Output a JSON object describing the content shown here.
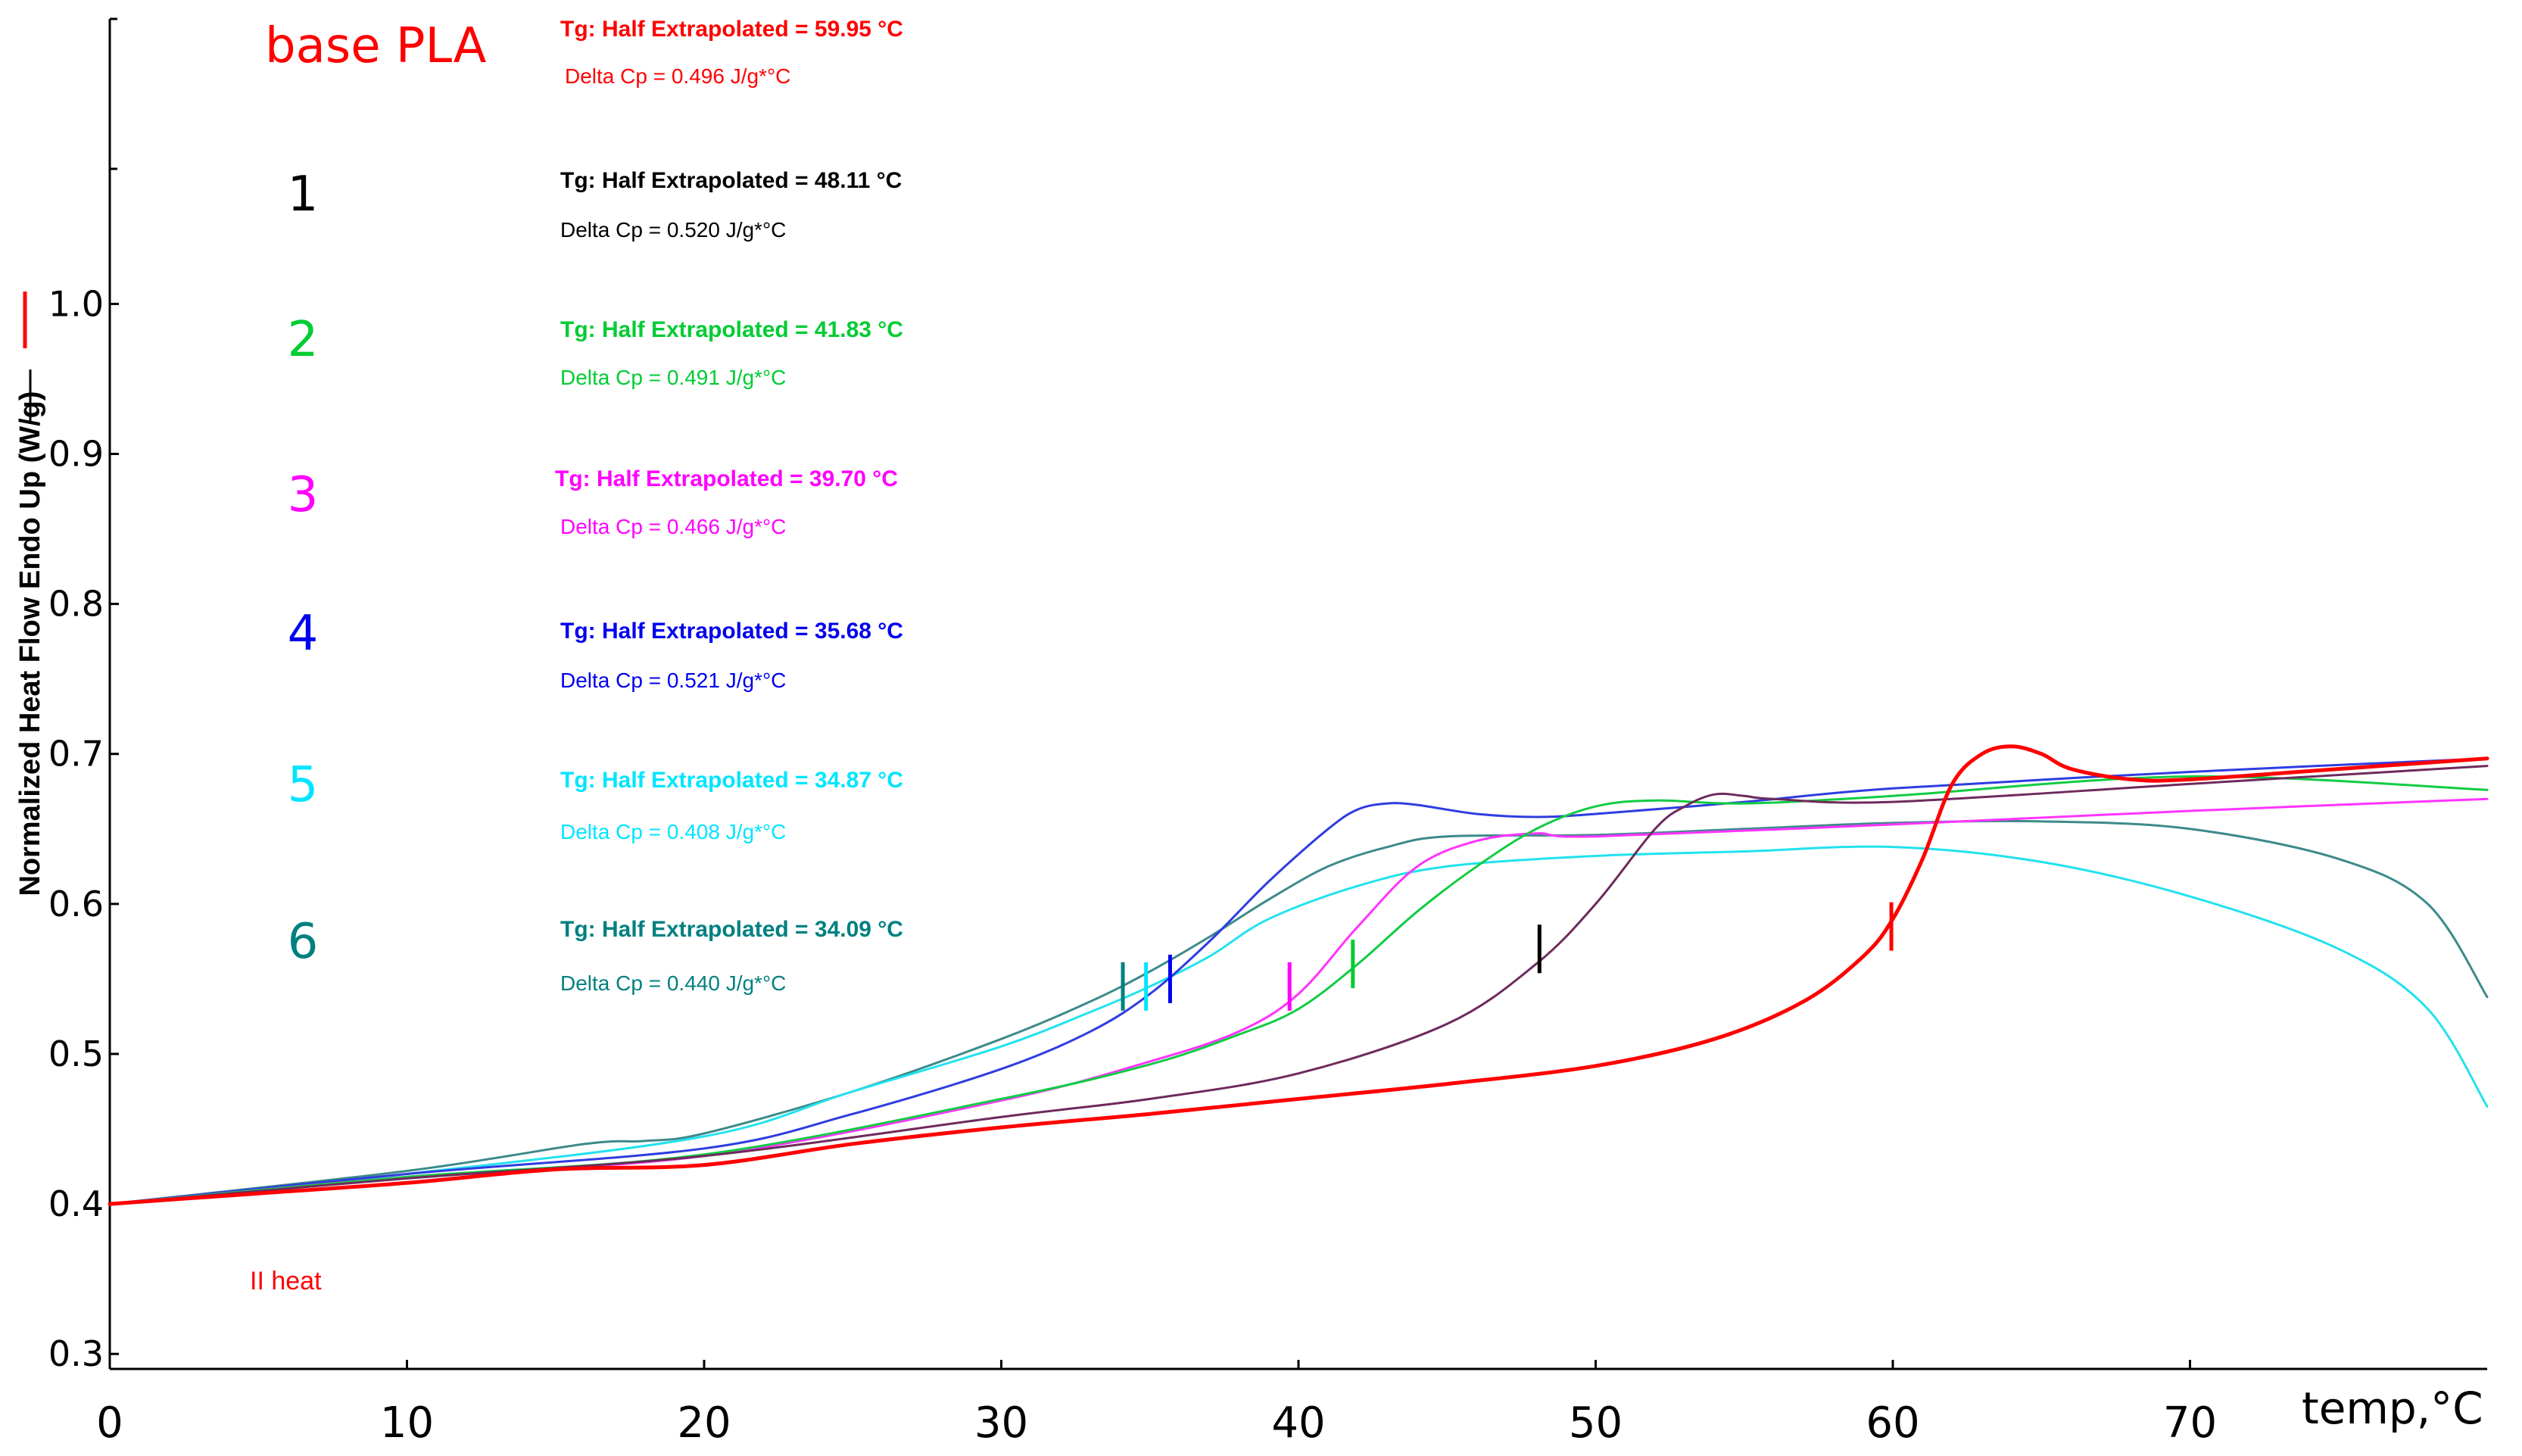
{
  "chart_data": {
    "type": "line",
    "title": "base PLA",
    "xlabel": "temp,°C",
    "ylabel": "Normalized Heat Flow Endo Up (W/g)",
    "xlim": [
      0,
      80
    ],
    "ylim": [
      0.29,
      1.19
    ],
    "x_ticks": [
      0,
      10,
      20,
      30,
      40,
      50,
      60,
      70
    ],
    "x_tick_labels": [
      "0",
      "10",
      "20",
      "30",
      "40",
      "50",
      "60",
      "70"
    ],
    "y_ticks": [
      0.3,
      0.4,
      0.5,
      0.6,
      0.7,
      0.8,
      0.9,
      1.0
    ],
    "y_tick_labels": [
      "0.3",
      "0.4",
      "0.5",
      "0.6",
      "0.7",
      "0.8",
      "0.9",
      "1.0"
    ],
    "note": "II heat",
    "series": [
      {
        "name": "base PLA",
        "label": "base PLA",
        "color": "#ff0000",
        "tg_text": "Tg: Half Extrapolated = 59.95 °C",
        "cp_text": "Delta Cp = 0.496 J/g*°C",
        "tg": 59.95,
        "tg_y": 0.585,
        "x": [
          0,
          5,
          10,
          15,
          20,
          25,
          30,
          35,
          40,
          45,
          50,
          54,
          57,
          59,
          60,
          61,
          62,
          63,
          64,
          65,
          66,
          68,
          70,
          75,
          80
        ],
        "y": [
          0.4,
          0.407,
          0.414,
          0.423,
          0.426,
          0.44,
          0.451,
          0.46,
          0.47,
          0.48,
          0.492,
          0.51,
          0.535,
          0.565,
          0.59,
          0.63,
          0.68,
          0.7,
          0.705,
          0.7,
          0.69,
          0.683,
          0.683,
          0.69,
          0.697
        ]
      },
      {
        "name": "1",
        "label": "1",
        "color": "#000000",
        "curve_color": "#6e2a5c",
        "tg_text": "Tg: Half Extrapolated = 48.11 °C",
        "cp_text": "Delta Cp = 0.520 J/g*°C",
        "tg": 48.11,
        "tg_y": 0.57,
        "x": [
          0,
          10,
          20,
          30,
          35,
          40,
          45,
          48,
          50,
          52,
          53,
          54,
          55,
          56,
          60,
          70,
          80
        ],
        "y": [
          0.4,
          0.417,
          0.432,
          0.458,
          0.47,
          0.487,
          0.52,
          0.56,
          0.6,
          0.65,
          0.665,
          0.673,
          0.672,
          0.67,
          0.668,
          0.68,
          0.692
        ]
      },
      {
        "name": "2",
        "label": "2",
        "color": "#00cc33",
        "curve_color": "#11cc44",
        "tg_text": "Tg: Half Extrapolated = 41.83 °C",
        "cp_text": "Delta Cp = 0.491 J/g*°C",
        "tg": 41.83,
        "tg_y": 0.56,
        "x": [
          0,
          10,
          20,
          30,
          35,
          38,
          40,
          42,
          44,
          46,
          48,
          50,
          52,
          55,
          60,
          70,
          80
        ],
        "y": [
          0.4,
          0.418,
          0.433,
          0.47,
          0.493,
          0.513,
          0.53,
          0.56,
          0.595,
          0.625,
          0.65,
          0.665,
          0.669,
          0.667,
          0.672,
          0.685,
          0.676
        ]
      },
      {
        "name": "3",
        "label": "3",
        "color": "#ff00ff",
        "curve_color": "#ff33ff",
        "tg_text": "Tg: Half Extrapolated = 39.70 °C",
        "cp_text": "Delta Cp = 0.466 J/g*°C",
        "tg": 39.7,
        "tg_y": 0.545,
        "x": [
          0,
          10,
          20,
          30,
          35,
          38,
          40,
          42,
          44,
          46,
          48,
          50,
          60,
          70,
          80
        ],
        "y": [
          0.4,
          0.418,
          0.432,
          0.469,
          0.495,
          0.515,
          0.54,
          0.585,
          0.625,
          0.642,
          0.647,
          0.645,
          0.653,
          0.662,
          0.67
        ]
      },
      {
        "name": "4",
        "label": "4",
        "color": "#0000ee",
        "curve_color": "#2e3de0",
        "tg_text": "Tg: Half Extrapolated = 35.68 °C",
        "cp_text": "Delta Cp = 0.521 J/g*°C",
        "tg": 35.68,
        "tg_y": 0.55,
        "x": [
          0,
          10,
          20,
          25,
          30,
          33,
          35,
          37,
          39,
          41,
          42,
          43,
          44,
          46,
          48,
          50,
          55,
          60,
          70,
          80
        ],
        "y": [
          0.4,
          0.42,
          0.437,
          0.46,
          0.49,
          0.515,
          0.54,
          0.575,
          0.615,
          0.65,
          0.663,
          0.667,
          0.666,
          0.66,
          0.658,
          0.66,
          0.668,
          0.677,
          0.688,
          0.697
        ]
      },
      {
        "name": "5",
        "label": "5",
        "color": "#00e5ff",
        "curve_color": "#22e2ee",
        "tg_text": "Tg: Half Extrapolated = 34.87 °C",
        "cp_text": "Delta Cp = 0.408 J/g*°C",
        "tg": 34.87,
        "tg_y": 0.545,
        "x": [
          0,
          10,
          20,
          25,
          30,
          33,
          35,
          37,
          39,
          42,
          45,
          50,
          55,
          60,
          65,
          70,
          75,
          78,
          80
        ],
        "y": [
          0.4,
          0.42,
          0.445,
          0.475,
          0.505,
          0.528,
          0.545,
          0.565,
          0.59,
          0.612,
          0.625,
          0.632,
          0.635,
          0.638,
          0.628,
          0.605,
          0.57,
          0.53,
          0.465
        ]
      },
      {
        "name": "6",
        "label": "6",
        "color": "#008080",
        "curve_color": "#3d8a8a",
        "tg_text": "Tg: Half Extrapolated = 34.09 °C",
        "cp_text": "Delta Cp = 0.440 J/g*°C",
        "tg": 34.09,
        "tg_y": 0.545,
        "x": [
          0,
          10,
          16,
          18,
          20,
          25,
          30,
          33,
          35,
          37,
          39,
          41,
          43,
          45,
          50,
          55,
          60,
          65,
          70,
          75,
          78,
          80
        ],
        "y": [
          0.4,
          0.422,
          0.44,
          0.442,
          0.447,
          0.475,
          0.51,
          0.535,
          0.555,
          0.578,
          0.603,
          0.625,
          0.638,
          0.645,
          0.646,
          0.65,
          0.654,
          0.655,
          0.65,
          0.63,
          0.6,
          0.538
        ]
      }
    ]
  }
}
